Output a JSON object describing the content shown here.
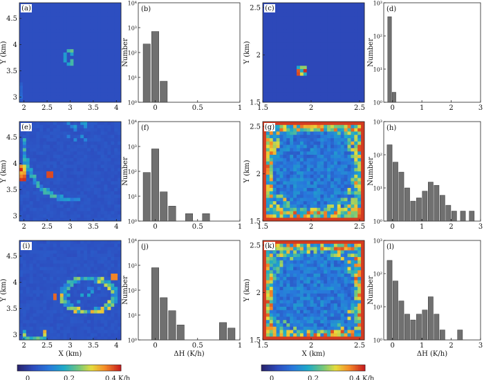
{
  "figure": {
    "colorbar_label": "K/h",
    "colorbar_ticks": [
      "0",
      "0.2",
      "0.4"
    ],
    "colors": {
      "frame": "#222222",
      "bar": "#707070",
      "map_background": "#283c91"
    }
  },
  "chart_data": [
    {
      "id": "a",
      "type": "heatmap",
      "label": "(a)",
      "xlim": [
        1.9,
        4.1
      ],
      "ylim": [
        2.9,
        4.8
      ],
      "xticks": [
        "2",
        "2.5",
        "3",
        "3.5",
        "4"
      ],
      "yticks": [
        "3",
        "3.5",
        "4",
        "4.5"
      ],
      "xlabel": "",
      "ylabel": "Y (km)",
      "feature": "small ring of positive heating rate near x=3.0 km, y=3.8 km"
    },
    {
      "id": "b",
      "type": "bar",
      "label": "(b)",
      "xlim": [
        -0.2,
        1
      ],
      "ylog": [
        1,
        10000
      ],
      "bin_centers": [
        -0.1,
        0,
        0.1
      ],
      "counts": [
        220,
        700,
        7
      ],
      "xticks": [
        "0",
        "0.5",
        "1"
      ],
      "yticks": [
        "10⁰",
        "10¹",
        "10²",
        "10³",
        "10⁴"
      ],
      "xlabel": "",
      "ylabel": "Number"
    },
    {
      "id": "c",
      "type": "heatmap",
      "label": "(c)",
      "xlim": [
        1.5,
        2.55
      ],
      "ylim": [
        1.5,
        2.55
      ],
      "xticks": [
        "1.5",
        "2",
        "2.5"
      ],
      "yticks": [
        "1.5",
        "2",
        "2.5"
      ],
      "xlabel": "",
      "ylabel": "Y (km)",
      "feature": "single small hot spot near x=1.9 km, y=1.85 km"
    },
    {
      "id": "d",
      "type": "bar",
      "label": "(d)",
      "xlim": [
        -0.3,
        3
      ],
      "ylog": [
        1,
        1000
      ],
      "bin_centers": [
        -0.1,
        0.05
      ],
      "counts": [
        380,
        2
      ],
      "xticks": [
        "0",
        "1",
        "2",
        "3"
      ],
      "yticks": [
        "10⁰",
        "10¹",
        "10²",
        "10³"
      ],
      "xlabel": "",
      "ylabel": "Number"
    },
    {
      "id": "e",
      "type": "heatmap",
      "label": "(e)",
      "xlim": [
        1.9,
        4.1
      ],
      "ylim": [
        2.9,
        4.8
      ],
      "xticks": [
        "2",
        "2.5",
        "3",
        "3.5",
        "4"
      ],
      "yticks": [
        "3",
        "3.5",
        "4",
        "4.5"
      ],
      "xlabel": "",
      "ylabel": "Y (km)",
      "feature": "arc of heating along the cloud edge with hot spots near x=2.0 km, y=3.8 km"
    },
    {
      "id": "f",
      "type": "bar",
      "label": "(f)",
      "xlim": [
        -0.2,
        1
      ],
      "ylog": [
        1,
        10000
      ],
      "bin_centers": [
        -0.1,
        0,
        0.1,
        0.2,
        0.4,
        0.6
      ],
      "counts": [
        90,
        800,
        15,
        4,
        2,
        2
      ],
      "xticks": [
        "0",
        "0.5",
        "1"
      ],
      "yticks": [
        "10⁰",
        "10¹",
        "10²",
        "10³",
        "10⁴"
      ],
      "xlabel": "",
      "ylabel": "Number"
    },
    {
      "id": "g",
      "type": "heatmap",
      "label": "(g)",
      "xlim": [
        1.5,
        2.55
      ],
      "ylim": [
        1.5,
        2.55
      ],
      "xticks": [
        "1.5",
        "2",
        "2.5"
      ],
      "yticks": [
        "1.5",
        "2",
        "2.5"
      ],
      "xlabel": "",
      "ylabel": "Y (km)",
      "feature": "strong heating along the domain boundary frame with patchy interior"
    },
    {
      "id": "h",
      "type": "bar",
      "label": "(h)",
      "xlim": [
        -0.3,
        3
      ],
      "ylog": [
        1,
        1000
      ],
      "bin_centers": [
        -0.1,
        0.1,
        0.3,
        0.5,
        0.7,
        0.9,
        1.1,
        1.3,
        1.5,
        1.7,
        1.9,
        2.1,
        2.4,
        2.7
      ],
      "counts": [
        200,
        60,
        30,
        10,
        4,
        5,
        8,
        15,
        12,
        6,
        3,
        2,
        2,
        2
      ],
      "xticks": [
        "0",
        "1",
        "2",
        "3"
      ],
      "yticks": [
        "10⁰",
        "10¹",
        "10²",
        "10³"
      ],
      "xlabel": "",
      "ylabel": "Number"
    },
    {
      "id": "i",
      "type": "heatmap",
      "label": "(i)",
      "xlim": [
        1.9,
        4.1
      ],
      "ylim": [
        2.9,
        4.8
      ],
      "xticks": [
        "2",
        "2.5",
        "3",
        "3.5",
        "4"
      ],
      "yticks": [
        "3",
        "3.5",
        "4",
        "4.5"
      ],
      "xlabel": "X (km)",
      "ylabel": "Y (km)",
      "feature": "large irregular ring of heating between x=2.6 and 4.0 km plus a small box near x=2.1 km, y=3.0 km"
    },
    {
      "id": "j",
      "type": "bar",
      "label": "(j)",
      "xlim": [
        -0.2,
        1
      ],
      "ylog": [
        1,
        10000
      ],
      "bin_centers": [
        0,
        0.1,
        0.2,
        0.3,
        0.8,
        0.9
      ],
      "counts": [
        800,
        50,
        15,
        4,
        5,
        3
      ],
      "xticks": [
        "0",
        "0.5",
        "1"
      ],
      "yticks": [
        "10⁰",
        "10¹",
        "10²",
        "10³",
        "10⁴"
      ],
      "xlabel": "ΔH (K/h)",
      "ylabel": "Number"
    },
    {
      "id": "k",
      "type": "heatmap",
      "label": "(k)",
      "xlim": [
        1.5,
        2.55
      ],
      "ylim": [
        1.5,
        2.55
      ],
      "xticks": [
        "1.5",
        "2",
        "2.5"
      ],
      "yticks": [
        "1.5",
        "2",
        "2.5"
      ],
      "xlabel": "X (km)",
      "ylabel": "Y (km)",
      "feature": "strong heating along the domain boundary frame with patchy interior"
    },
    {
      "id": "l",
      "type": "bar",
      "label": "(l)",
      "xlim": [
        -0.3,
        3
      ],
      "ylog": [
        1,
        1000
      ],
      "bin_centers": [
        -0.1,
        0.1,
        0.3,
        0.5,
        0.7,
        0.9,
        1.1,
        1.3,
        1.5,
        1.7,
        2.3
      ],
      "counts": [
        250,
        60,
        15,
        6,
        4,
        6,
        8,
        20,
        6,
        2,
        2
      ],
      "xticks": [
        "0",
        "1",
        "2",
        "3"
      ],
      "yticks": [
        "10⁰",
        "10¹",
        "10²",
        "10³"
      ],
      "xlabel": "ΔH (K/h)",
      "ylabel": "Number"
    }
  ]
}
